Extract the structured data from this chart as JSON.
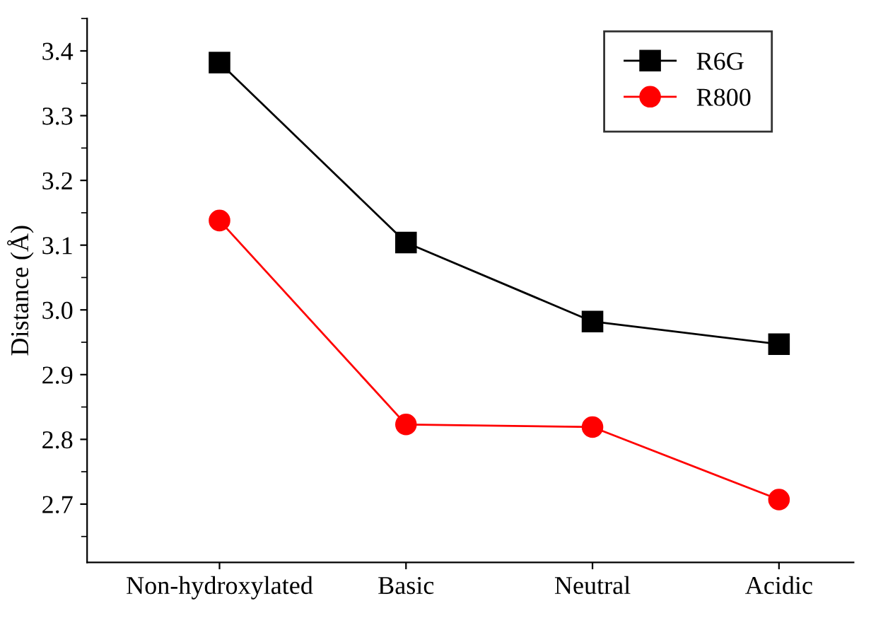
{
  "chart_data": {
    "type": "line",
    "ylabel": "Distance (Å)",
    "categories": [
      "Non-hydroxylated",
      "Basic",
      "Neutral",
      "Acidic"
    ],
    "series": [
      {
        "name": "R6G",
        "color": "#000000",
        "marker": "square",
        "values": [
          3.382,
          3.104,
          2.982,
          2.947
        ]
      },
      {
        "name": "R800",
        "color": "#ff0000",
        "marker": "circle",
        "values": [
          3.138,
          2.823,
          2.819,
          2.707
        ]
      }
    ],
    "ylim": [
      2.61,
      3.45
    ],
    "yticks": [
      2.7,
      2.8,
      2.9,
      {
        "value": 3.0,
        "label": "3.0"
      },
      3.1,
      3.2,
      3.3,
      3.4
    ],
    "grid": false,
    "legend": "top right",
    "line_style": "solid"
  }
}
